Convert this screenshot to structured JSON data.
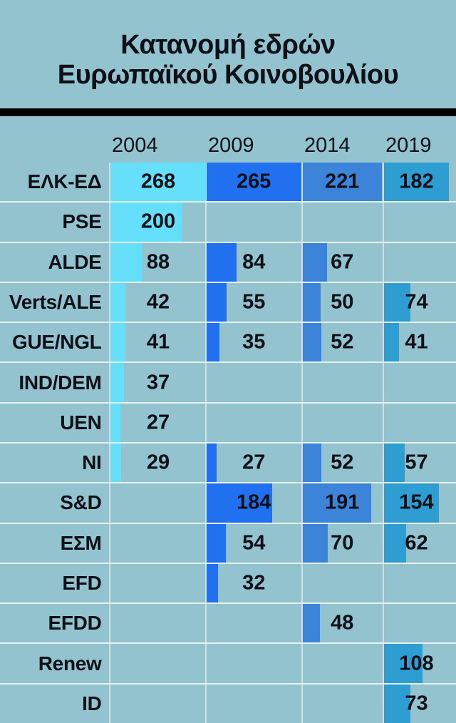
{
  "title": {
    "line1": "Κατανομή εδρών",
    "line2": "Ευρωπαϊκού Κοινοβουλίου"
  },
  "colors": {
    "background": "#92c3ce",
    "title_text": "#0d1117",
    "title_rule": "#000000",
    "bar_2004": "#66dffa",
    "bar_2009": "#2070f0",
    "bar_2014": "#3c83da",
    "bar_2019": "#2d9dd2",
    "row_divider": "rgba(255,255,255,0.78)",
    "column_divider": "rgba(255,255,255,0.5)"
  },
  "chart_data": {
    "type": "bar",
    "orientation": "horizontal",
    "title": "Κατανομή εδρών Ευρωπαϊκού Κοινοβουλίου",
    "categories": [
      "2004",
      "2009",
      "2014",
      "2019"
    ],
    "column_max": [
      268,
      265,
      221,
      182
    ],
    "grid": "row and column divider lines on",
    "legend": "none",
    "value_labels": "shown, centered per year column",
    "rows": [
      {
        "label": "ΕΛΚ-ΕΔ",
        "values": [
          268,
          265,
          221,
          182
        ]
      },
      {
        "label": "PSE",
        "values": [
          200,
          null,
          null,
          null
        ]
      },
      {
        "label": "ALDE",
        "values": [
          88,
          84,
          67,
          null
        ]
      },
      {
        "label": "Verts/ALE",
        "values": [
          42,
          55,
          50,
          74
        ]
      },
      {
        "label": "GUE/NGL",
        "values": [
          41,
          35,
          52,
          41
        ]
      },
      {
        "label": "IND/DEM",
        "values": [
          37,
          null,
          null,
          null
        ]
      },
      {
        "label": "UEN",
        "values": [
          27,
          null,
          null,
          null
        ]
      },
      {
        "label": "NI",
        "values": [
          29,
          27,
          52,
          57
        ]
      },
      {
        "label": "S&D",
        "values": [
          null,
          184,
          191,
          154
        ]
      },
      {
        "label": "ΕΣΜ",
        "values": [
          null,
          54,
          70,
          62
        ]
      },
      {
        "label": "EFD",
        "values": [
          null,
          32,
          null,
          null
        ]
      },
      {
        "label": "EFDD",
        "values": [
          null,
          null,
          48,
          null
        ]
      },
      {
        "label": "Renew",
        "values": [
          null,
          null,
          null,
          108
        ]
      },
      {
        "label": "ID",
        "values": [
          null,
          null,
          null,
          73
        ]
      }
    ]
  }
}
